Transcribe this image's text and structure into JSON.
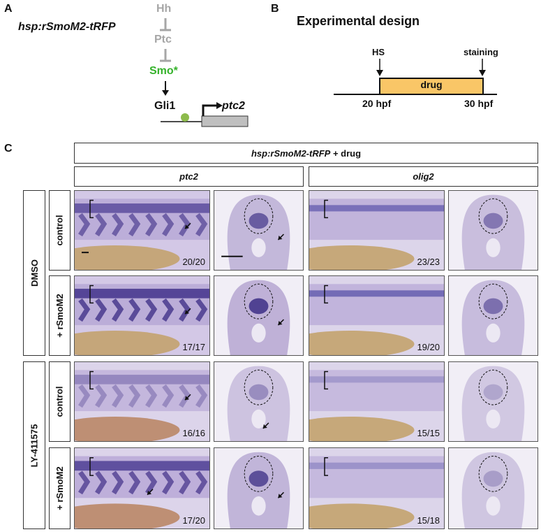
{
  "panel_a": {
    "letter": "A",
    "genotype": "hsp:rSmoM2-tRFP",
    "hh": "Hh",
    "ptc": "Ptc",
    "smo": "Smo*",
    "gli1": "Gli1",
    "target_gene": "ptc2",
    "colors": {
      "inactive": "#a6a6a6",
      "active": "#35b22b",
      "gli_dot": "#8dbb4c",
      "gene_box": "#bfbfbf"
    }
  },
  "panel_b": {
    "letter": "B",
    "title": "Experimental design",
    "hs": "HS",
    "staining": "staining",
    "drug": "drug",
    "start": "20 hpf",
    "end": "30 hpf",
    "colors": {
      "drug_box": "#f9c667"
    }
  },
  "panel_c": {
    "letter": "C",
    "header_genotype": "hsp:rSmoM2-tRFP",
    "header_suffix": " + drug",
    "probe_1": "ptc2",
    "probe_2": "olig2",
    "drug_1": "DMSO",
    "drug_2": "LY-411575",
    "row_labels": [
      "control",
      "+ rSmoM2",
      "control",
      "+ rSmoM2"
    ],
    "ratios_ptc2": [
      "20/20",
      "17/17",
      "16/16",
      "17/20"
    ],
    "ratios_olig2": [
      "23/23",
      "19/20",
      "15/15",
      "15/18"
    ],
    "colors": {
      "stain": "#5a4aa0",
      "yolk": "#c2a066",
      "tissue": "#cfc3e0"
    }
  }
}
